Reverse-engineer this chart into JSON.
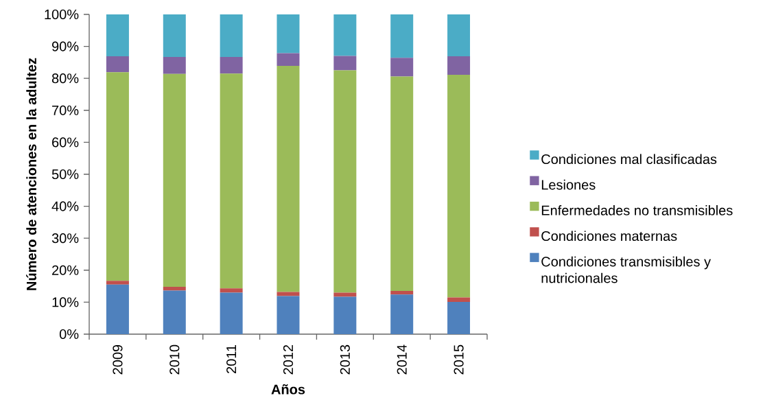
{
  "chart_data": {
    "type": "bar",
    "stacked": true,
    "xlabel": "Años",
    "ylabel": "Número de atenciones en la adultez",
    "categories": [
      "2009",
      "2010",
      "2011",
      "2012",
      "2013",
      "2014",
      "2015"
    ],
    "series": [
      {
        "name": "Condiciones transmisibles y nutricionales",
        "color": "#4f81bd",
        "values": [
          15.5,
          13.6,
          13.0,
          11.9,
          11.7,
          12.4,
          10.1
        ]
      },
      {
        "name": "Condiciones maternas",
        "color": "#c0504d",
        "values": [
          1.2,
          1.2,
          1.3,
          1.3,
          1.3,
          1.1,
          1.4
        ]
      },
      {
        "name": "Enfermedades no transmisibles",
        "color": "#9bbb59",
        "values": [
          65.2,
          66.6,
          67.2,
          70.7,
          69.5,
          67.1,
          69.6
        ]
      },
      {
        "name": "Lesiones",
        "color": "#8064a2",
        "values": [
          5.0,
          5.3,
          5.2,
          4.0,
          4.5,
          5.8,
          5.8
        ]
      },
      {
        "name": "Condiciones mal clasificadas",
        "color": "#4bacc6",
        "values": [
          13.1,
          13.3,
          13.3,
          12.1,
          13.0,
          13.6,
          13.1
        ]
      }
    ],
    "ylim": [
      0,
      100
    ],
    "yticks": [
      {
        "value": 0,
        "label": "0%"
      },
      {
        "value": 10,
        "label": "10%"
      },
      {
        "value": 20,
        "label": "20%"
      },
      {
        "value": 30,
        "label": "30%"
      },
      {
        "value": 40,
        "label": "40%"
      },
      {
        "value": 50,
        "label": "50%"
      },
      {
        "value": 60,
        "label": "60%"
      },
      {
        "value": 70,
        "label": "70%"
      },
      {
        "value": 80,
        "label": "80%"
      },
      {
        "value": 90,
        "label": "90%"
      },
      {
        "value": 100,
        "label": "100%"
      }
    ],
    "legend": "right"
  }
}
